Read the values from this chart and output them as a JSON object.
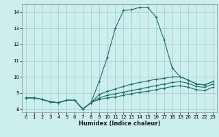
{
  "xlabel": "Humidex (Indice chaleur)",
  "bg_color": "#cceeed",
  "grid_color": "#aacccc",
  "line_color": "#1a6b6b",
  "xlim": [
    -0.5,
    23.5
  ],
  "ylim": [
    7.8,
    14.5
  ],
  "yticks": [
    8,
    9,
    10,
    11,
    12,
    13,
    14
  ],
  "xticks": [
    0,
    1,
    2,
    3,
    4,
    5,
    6,
    7,
    8,
    9,
    10,
    11,
    12,
    13,
    14,
    15,
    16,
    17,
    18,
    19,
    20,
    21,
    22,
    23
  ],
  "series": [
    {
      "x": [
        0,
        1,
        2,
        3,
        4,
        5,
        6,
        7,
        8,
        9,
        10,
        11,
        12,
        13,
        14,
        15,
        16,
        17,
        18,
        19,
        20,
        21,
        22,
        23
      ],
      "y": [
        8.7,
        8.7,
        8.6,
        8.45,
        8.4,
        8.55,
        8.55,
        8.0,
        8.4,
        9.7,
        11.2,
        13.0,
        14.1,
        14.15,
        14.3,
        14.3,
        13.7,
        12.3,
        10.55,
        10.0,
        9.8,
        9.55,
        9.5,
        9.7
      ]
    },
    {
      "x": [
        0,
        1,
        2,
        3,
        4,
        5,
        6,
        7,
        8,
        9,
        10,
        11,
        12,
        13,
        14,
        15,
        16,
        17,
        18,
        19,
        20,
        21,
        22,
        23
      ],
      "y": [
        8.7,
        8.7,
        8.6,
        8.45,
        8.4,
        8.55,
        8.55,
        8.0,
        8.4,
        8.9,
        9.1,
        9.25,
        9.4,
        9.55,
        9.65,
        9.75,
        9.85,
        9.9,
        10.0,
        10.0,
        9.8,
        9.55,
        9.5,
        9.7
      ]
    },
    {
      "x": [
        0,
        1,
        2,
        3,
        4,
        5,
        6,
        7,
        8,
        9,
        10,
        11,
        12,
        13,
        14,
        15,
        16,
        17,
        18,
        19,
        20,
        21,
        22,
        23
      ],
      "y": [
        8.7,
        8.7,
        8.6,
        8.45,
        8.4,
        8.55,
        8.55,
        8.0,
        8.4,
        8.7,
        8.85,
        8.95,
        9.05,
        9.15,
        9.25,
        9.35,
        9.45,
        9.55,
        9.65,
        9.7,
        9.6,
        9.4,
        9.35,
        9.55
      ]
    },
    {
      "x": [
        0,
        1,
        2,
        3,
        4,
        5,
        6,
        7,
        8,
        9,
        10,
        11,
        12,
        13,
        14,
        15,
        16,
        17,
        18,
        19,
        20,
        21,
        22,
        23
      ],
      "y": [
        8.7,
        8.7,
        8.6,
        8.45,
        8.4,
        8.55,
        8.55,
        8.0,
        8.4,
        8.6,
        8.7,
        8.75,
        8.85,
        8.95,
        9.05,
        9.1,
        9.2,
        9.3,
        9.4,
        9.45,
        9.35,
        9.2,
        9.15,
        9.35
      ]
    }
  ]
}
